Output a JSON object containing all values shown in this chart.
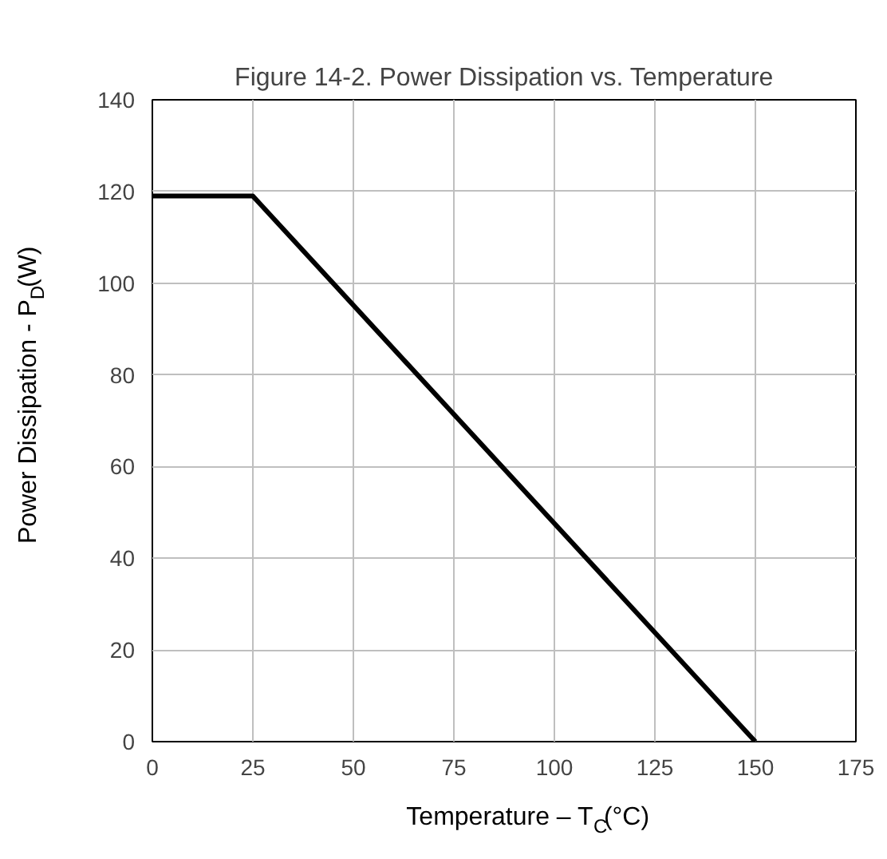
{
  "chart_data": {
    "type": "line",
    "title": "Figure 14-2. Power Dissipation vs. Temperature",
    "xlabel": "Temperature – T$_{C}$(°C)",
    "ylabel": "Power Dissipation - P$_{D}$(W)",
    "series": [
      {
        "color": "#000000",
        "x": [
          0,
          25,
          150
        ],
        "values": [
          119,
          119,
          0
        ]
      }
    ],
    "xlim": [
      0,
      175
    ],
    "xticks": [
      0,
      25,
      50,
      75,
      100,
      125,
      150,
      175
    ],
    "ylim": [
      0,
      140
    ],
    "yticks": [
      0,
      20,
      40,
      60,
      80,
      100,
      120,
      140
    ],
    "grid": true,
    "line_style": "solid",
    "marker": "none"
  }
}
